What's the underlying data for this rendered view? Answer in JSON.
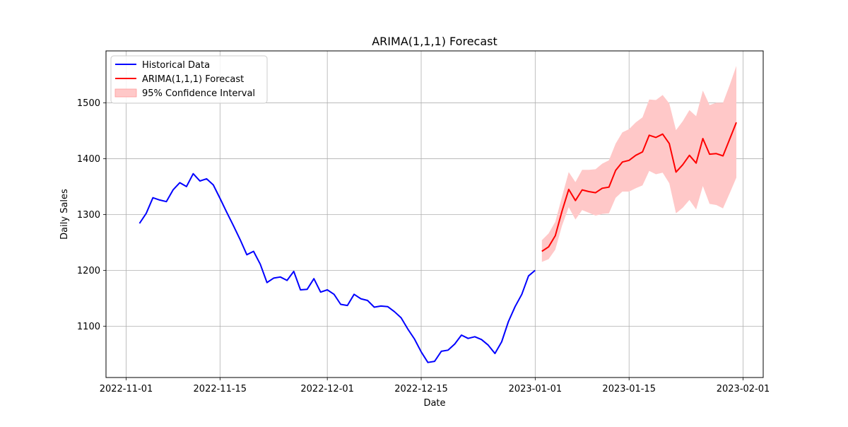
{
  "chart_data": {
    "type": "line",
    "title": "ARIMA(1,1,1) Forecast",
    "xlabel": "Date",
    "ylabel": "Daily Sales",
    "grid": true,
    "legend_position": "top-left",
    "xlim": [
      "2022-10-29",
      "2023-02-04"
    ],
    "ylim": [
      1008,
      1593
    ],
    "x_ticks": [
      {
        "date": "2022-11-01",
        "label": "2022-11-01"
      },
      {
        "date": "2022-11-15",
        "label": "2022-11-15"
      },
      {
        "date": "2022-12-01",
        "label": "2022-12-01"
      },
      {
        "date": "2022-12-15",
        "label": "2022-12-15"
      },
      {
        "date": "2023-01-01",
        "label": "2023-01-01"
      },
      {
        "date": "2023-01-15",
        "label": "2023-01-15"
      },
      {
        "date": "2023-02-01",
        "label": "2023-02-01"
      }
    ],
    "y_ticks": [
      1100,
      1200,
      1300,
      1400,
      1500
    ],
    "series": [
      {
        "name": "Historical Data",
        "color": "#0000ff",
        "x": [
          "2022-11-03",
          "2022-11-04",
          "2022-11-05",
          "2022-11-06",
          "2022-11-07",
          "2022-11-08",
          "2022-11-09",
          "2022-11-10",
          "2022-11-11",
          "2022-11-12",
          "2022-11-13",
          "2022-11-14",
          "2022-11-15",
          "2022-11-16",
          "2022-11-17",
          "2022-11-18",
          "2022-11-19",
          "2022-11-20",
          "2022-11-21",
          "2022-11-22",
          "2022-11-23",
          "2022-11-24",
          "2022-11-25",
          "2022-11-26",
          "2022-11-27",
          "2022-11-28",
          "2022-11-29",
          "2022-11-30",
          "2022-12-01",
          "2022-12-02",
          "2022-12-03",
          "2022-12-04",
          "2022-12-05",
          "2022-12-06",
          "2022-12-07",
          "2022-12-08",
          "2022-12-09",
          "2022-12-10",
          "2022-12-11",
          "2022-12-12",
          "2022-12-13",
          "2022-12-14",
          "2022-12-15",
          "2022-12-16",
          "2022-12-17",
          "2022-12-18",
          "2022-12-19",
          "2022-12-20",
          "2022-12-21",
          "2022-12-22",
          "2022-12-23",
          "2022-12-24",
          "2022-12-25",
          "2022-12-26",
          "2022-12-27",
          "2022-12-28",
          "2022-12-29",
          "2022-12-30",
          "2022-12-31",
          "2023-01-01"
        ],
        "y": [
          1284,
          1302,
          1330,
          1326,
          1323,
          1344,
          1357,
          1350,
          1373,
          1360,
          1364,
          1353,
          1329,
          1304,
          1280,
          1255,
          1228,
          1234,
          1211,
          1178,
          1186,
          1188,
          1182,
          1198,
          1165,
          1166,
          1185,
          1161,
          1165,
          1157,
          1139,
          1137,
          1157,
          1149,
          1146,
          1134,
          1136,
          1135,
          1126,
          1115,
          1095,
          1077,
          1054,
          1035,
          1037,
          1055,
          1057,
          1068,
          1084,
          1078,
          1081,
          1076,
          1066,
          1051,
          1072,
          1108,
          1135,
          1157,
          1190,
          1200
        ]
      },
      {
        "name": "ARIMA(1,1,1) Forecast",
        "color": "#ff0000",
        "x": [
          "2023-01-02",
          "2023-01-03",
          "2023-01-04",
          "2023-01-05",
          "2023-01-06",
          "2023-01-07",
          "2023-01-08",
          "2023-01-09",
          "2023-01-10",
          "2023-01-11",
          "2023-01-12",
          "2023-01-13",
          "2023-01-14",
          "2023-01-15",
          "2023-01-16",
          "2023-01-17",
          "2023-01-18",
          "2023-01-19",
          "2023-01-20",
          "2023-01-21",
          "2023-01-22",
          "2023-01-23",
          "2023-01-24",
          "2023-01-25",
          "2023-01-26",
          "2023-01-27",
          "2023-01-28",
          "2023-01-29",
          "2023-01-30",
          "2023-01-31"
        ],
        "y": [
          1234,
          1242,
          1262,
          1306,
          1345,
          1325,
          1344,
          1341,
          1339,
          1347,
          1349,
          1379,
          1394,
          1397,
          1406,
          1412,
          1442,
          1438,
          1444,
          1427,
          1376,
          1389,
          1406,
          1392,
          1436,
          1408,
          1409,
          1405,
          1435,
          1465
        ],
        "ci_label": "95% Confidence Interval",
        "ci_color": "#ffc8c8",
        "ci_lower": [
          1215,
          1220,
          1237,
          1280,
          1313,
          1291,
          1308,
          1303,
          1298,
          1301,
          1302,
          1330,
          1341,
          1341,
          1347,
          1352,
          1378,
          1372,
          1375,
          1356,
          1302,
          1312,
          1326,
          1309,
          1351,
          1319,
          1317,
          1311,
          1338,
          1366
        ],
        "ci_upper": [
          1254,
          1266,
          1287,
          1332,
          1376,
          1358,
          1380,
          1380,
          1381,
          1391,
          1397,
          1427,
          1447,
          1453,
          1465,
          1474,
          1506,
          1505,
          1514,
          1499,
          1451,
          1467,
          1487,
          1476,
          1522,
          1496,
          1500,
          1500,
          1532,
          1566
        ]
      }
    ]
  }
}
